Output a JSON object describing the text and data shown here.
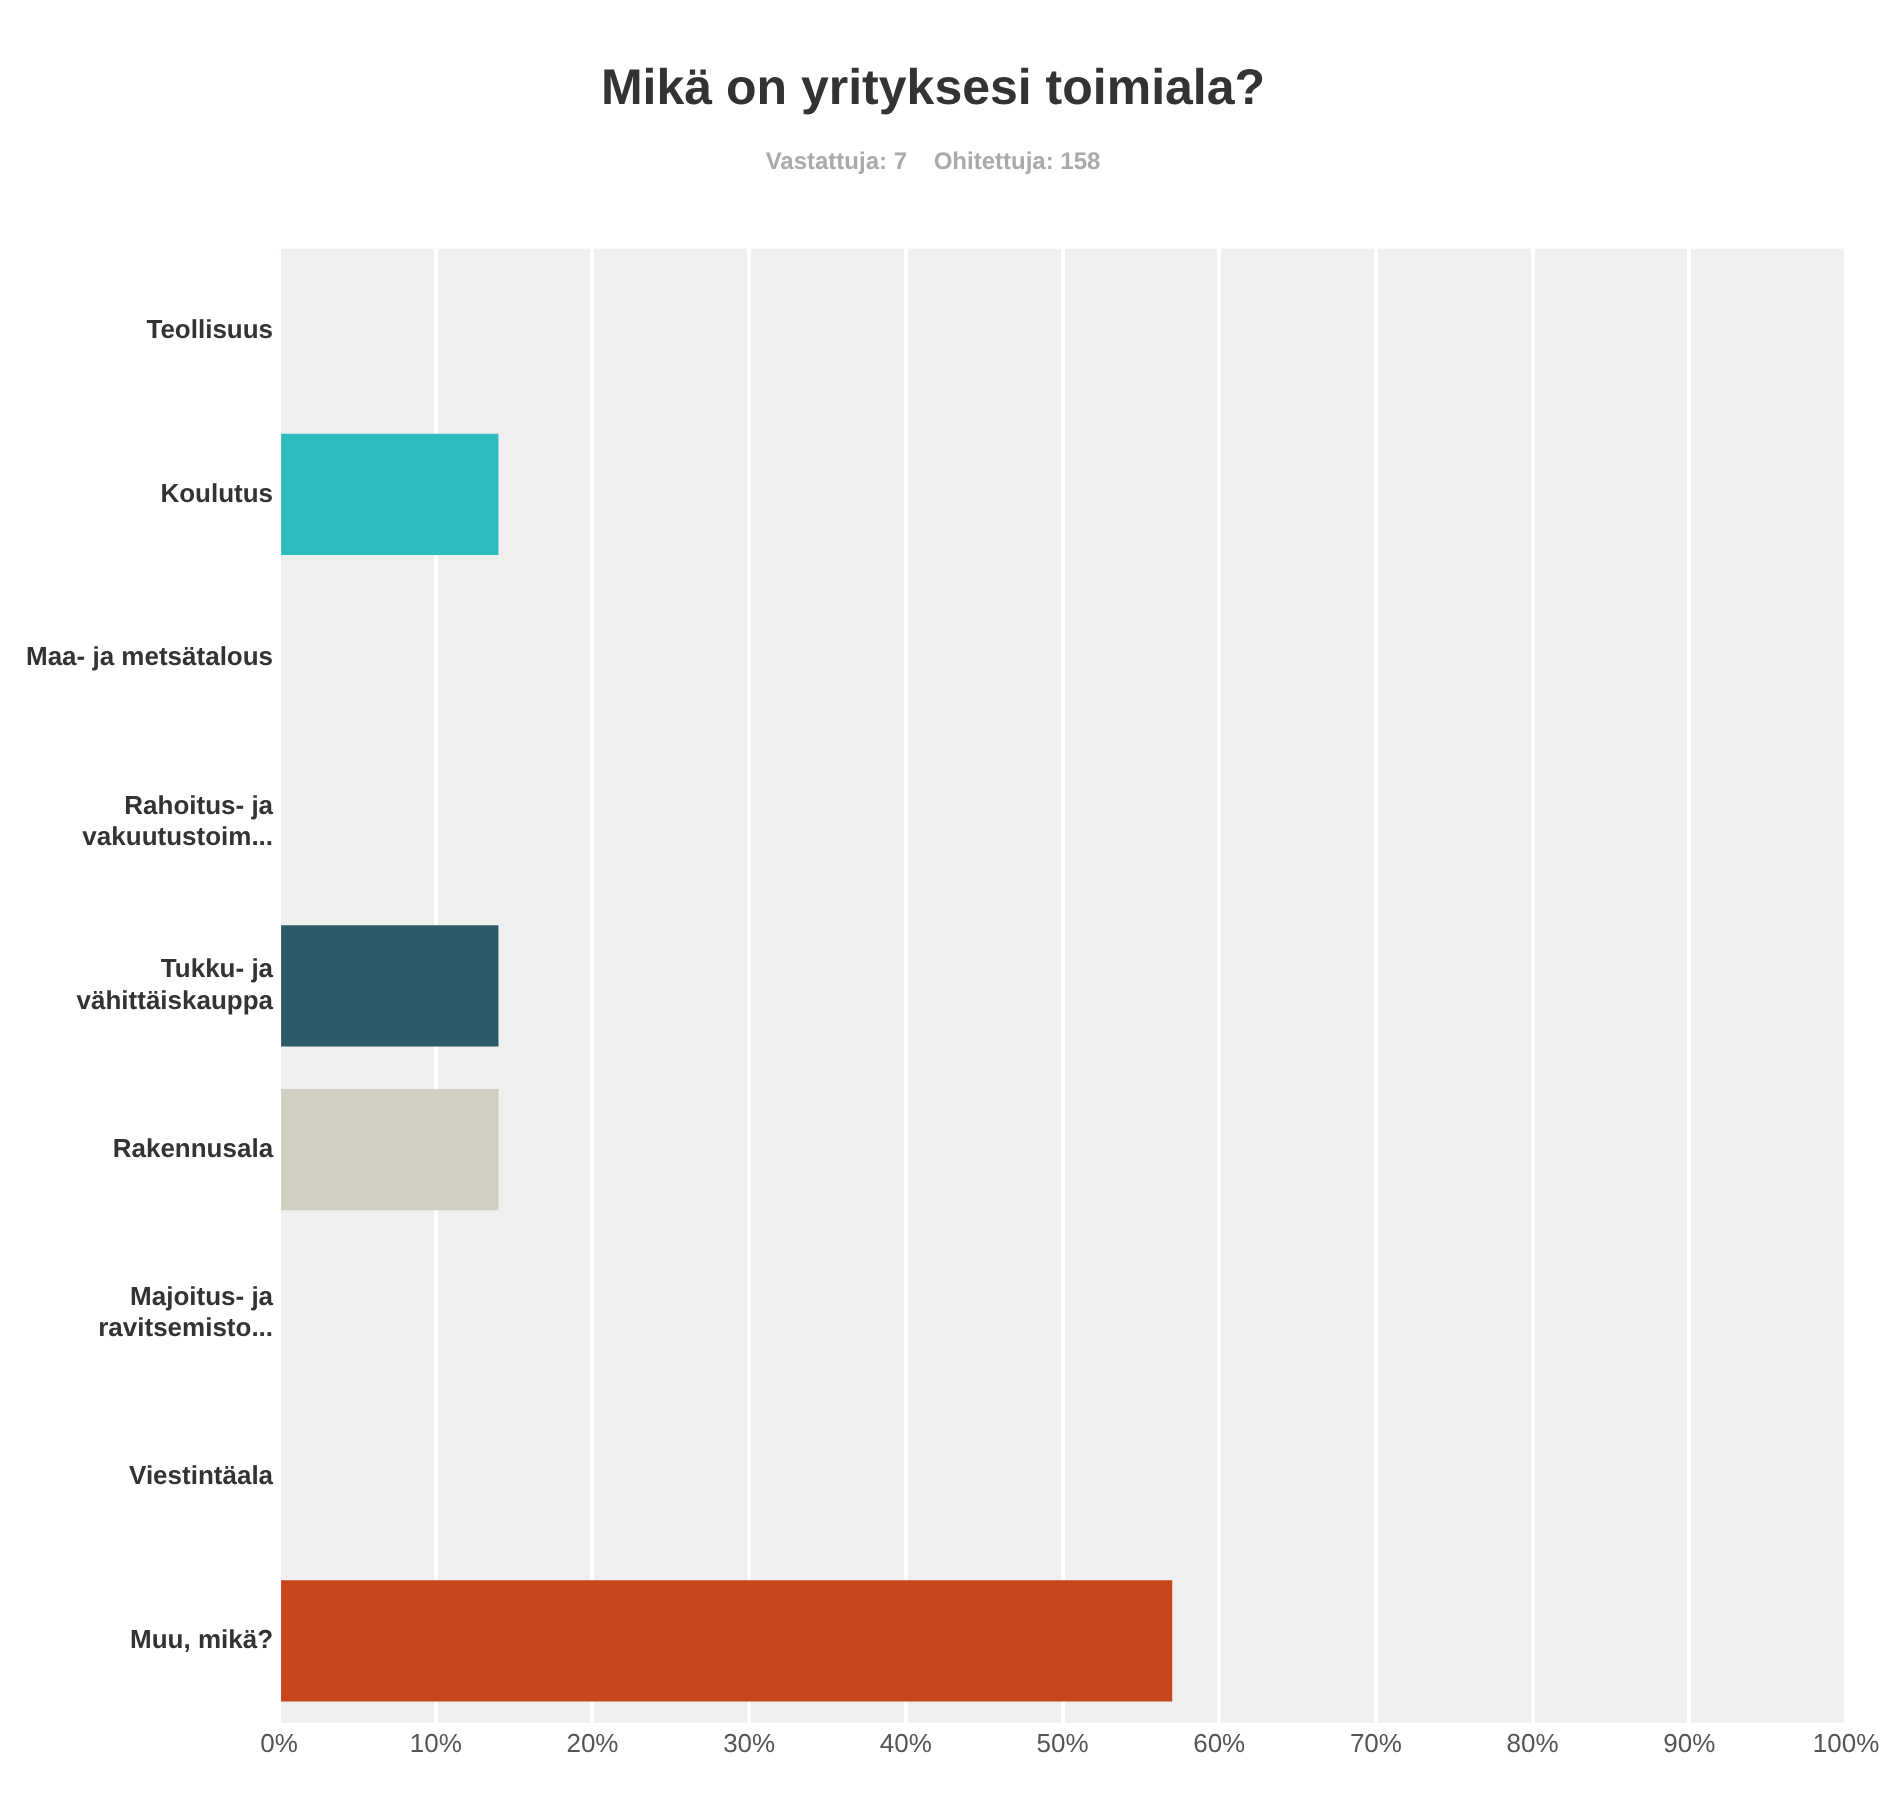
{
  "chart_data": {
    "type": "bar",
    "orientation": "horizontal",
    "title": "Mikä on yrityksesi toimiala?",
    "subtitle": "Vastattuja: 7    Ohitettuja: 158",
    "categories": [
      "Teollisuus",
      "Koulutus",
      "Maa- ja metsätalous",
      "Rahoitus- ja vakuutustoim...",
      "Tukku- ja vähittäiskauppa",
      "Rakennusala",
      "Majoitus- ja ravitsemisto...",
      "Viestintäala",
      "Muu, mikä?"
    ],
    "values": [
      0,
      14,
      0,
      0,
      14,
      14,
      0,
      0,
      57
    ],
    "colors": [
      null,
      "#2ebdbf",
      null,
      null,
      "#2d5a68",
      "#d0cfc2",
      null,
      null,
      "#c7461c"
    ],
    "xlim": [
      0,
      100
    ],
    "xticks": [
      {
        "value": 0,
        "label": "0%"
      },
      {
        "value": 10,
        "label": "10%"
      },
      {
        "value": 20,
        "label": "20%"
      },
      {
        "value": 30,
        "label": "30%"
      },
      {
        "value": 40,
        "label": "40%"
      },
      {
        "value": 50,
        "label": "50%"
      },
      {
        "value": 60,
        "label": "60%"
      },
      {
        "value": 70,
        "label": "70%"
      },
      {
        "value": 80,
        "label": "80%"
      },
      {
        "value": 90,
        "label": "90%"
      },
      {
        "value": 100,
        "label": "100%"
      }
    ],
    "grid": "x",
    "legend": false
  }
}
